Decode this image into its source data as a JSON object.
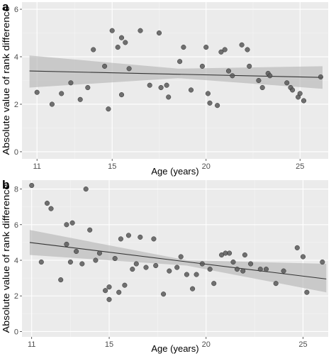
{
  "colors": {
    "panel_bg": "#ebebeb",
    "grid_major": "#ffffff",
    "grid_minor": "#f4f4f4",
    "point_fill": "#595959",
    "point_stroke": "#333333",
    "band_fill": "#b3b3b3",
    "fit_line": "#333333",
    "tick_text": "#4d4d4d"
  },
  "chart_data": [
    {
      "type": "scatter",
      "panel_label": "a",
      "xlabel": "Age (years)",
      "ylabel": "Absolute value of rank difference",
      "xlim": [
        10.2,
        26.5
      ],
      "ylim": [
        -0.3,
        6.3
      ],
      "xticks": [
        11,
        15,
        20,
        25
      ],
      "yticks": [
        0,
        2,
        4,
        6
      ],
      "grid": true,
      "legend": "none",
      "points": [
        [
          11.0,
          2.5
        ],
        [
          11.8,
          2.0
        ],
        [
          12.3,
          2.45
        ],
        [
          12.8,
          2.9
        ],
        [
          13.3,
          2.2
        ],
        [
          13.7,
          2.7
        ],
        [
          14.0,
          4.3
        ],
        [
          14.6,
          3.6
        ],
        [
          14.8,
          1.8
        ],
        [
          15.0,
          5.1
        ],
        [
          15.3,
          4.4
        ],
        [
          15.5,
          4.8
        ],
        [
          15.7,
          4.6
        ],
        [
          15.9,
          3.5
        ],
        [
          15.5,
          2.4
        ],
        [
          16.5,
          5.1
        ],
        [
          17.0,
          2.8
        ],
        [
          17.5,
          5.0
        ],
        [
          17.6,
          2.7
        ],
        [
          17.9,
          2.8
        ],
        [
          18.0,
          2.3
        ],
        [
          18.6,
          3.8
        ],
        [
          18.8,
          4.4
        ],
        [
          19.2,
          2.6
        ],
        [
          19.8,
          3.6
        ],
        [
          20.0,
          4.4
        ],
        [
          20.1,
          2.45
        ],
        [
          20.2,
          2.05
        ],
        [
          20.6,
          1.95
        ],
        [
          20.8,
          4.2
        ],
        [
          21.0,
          4.3
        ],
        [
          21.2,
          3.4
        ],
        [
          21.4,
          3.2
        ],
        [
          21.9,
          4.5
        ],
        [
          22.2,
          4.3
        ],
        [
          22.3,
          3.6
        ],
        [
          22.8,
          3.0
        ],
        [
          23.0,
          2.7
        ],
        [
          23.3,
          3.3
        ],
        [
          23.4,
          3.2
        ],
        [
          24.3,
          2.9
        ],
        [
          24.5,
          2.7
        ],
        [
          24.6,
          2.6
        ],
        [
          24.9,
          2.3
        ],
        [
          25.0,
          2.45
        ],
        [
          25.2,
          2.15
        ],
        [
          26.1,
          3.15
        ]
      ],
      "fit": {
        "x": [
          10.6,
          26.2
        ],
        "y": [
          3.4,
          3.13
        ]
      },
      "band": {
        "x": [
          10.6,
          18.5,
          26.2
        ],
        "lower": [
          2.7,
          3.1,
          2.65
        ],
        "upper": [
          4.05,
          3.5,
          3.6
        ]
      }
    },
    {
      "type": "scatter",
      "panel_label": "b",
      "xlabel": "Age (years)",
      "ylabel": "Absolute value of rank difference",
      "xlim": [
        10.5,
        26.3
      ],
      "ylim": [
        -0.3,
        8.5
      ],
      "xticks": [
        11,
        15,
        20,
        25
      ],
      "yticks": [
        0,
        2,
        4,
        6,
        8
      ],
      "grid": true,
      "legend": "none",
      "points": [
        [
          11.0,
          8.2
        ],
        [
          11.5,
          3.9
        ],
        [
          11.8,
          7.2
        ],
        [
          12.0,
          6.9
        ],
        [
          12.5,
          2.9
        ],
        [
          12.8,
          4.9
        ],
        [
          12.8,
          6.0
        ],
        [
          13.0,
          3.9
        ],
        [
          13.1,
          6.1
        ],
        [
          13.3,
          4.5
        ],
        [
          13.6,
          3.8
        ],
        [
          13.8,
          8.0
        ],
        [
          14.0,
          5.7
        ],
        [
          14.3,
          4.0
        ],
        [
          14.5,
          4.4
        ],
        [
          14.8,
          2.3
        ],
        [
          15.0,
          2.5
        ],
        [
          15.0,
          1.8
        ],
        [
          15.3,
          4.1
        ],
        [
          15.5,
          2.2
        ],
        [
          15.6,
          5.2
        ],
        [
          15.8,
          2.6
        ],
        [
          16.0,
          5.4
        ],
        [
          16.2,
          3.5
        ],
        [
          16.4,
          3.8
        ],
        [
          16.6,
          5.3
        ],
        [
          16.9,
          3.6
        ],
        [
          17.3,
          5.2
        ],
        [
          17.4,
          3.7
        ],
        [
          17.8,
          2.1
        ],
        [
          18.1,
          3.4
        ],
        [
          18.5,
          3.6
        ],
        [
          18.7,
          4.2
        ],
        [
          19.0,
          3.2
        ],
        [
          19.3,
          2.4
        ],
        [
          19.5,
          3.2
        ],
        [
          19.8,
          3.8
        ],
        [
          20.2,
          3.5
        ],
        [
          20.4,
          2.7
        ],
        [
          20.8,
          4.3
        ],
        [
          21.0,
          4.4
        ],
        [
          21.2,
          4.4
        ],
        [
          21.4,
          3.9
        ],
        [
          21.6,
          3.5
        ],
        [
          21.9,
          3.4
        ],
        [
          22.0,
          4.3
        ],
        [
          22.3,
          3.8
        ],
        [
          22.8,
          3.5
        ],
        [
          23.1,
          3.5
        ],
        [
          23.6,
          2.7
        ],
        [
          24.0,
          3.4
        ],
        [
          24.7,
          4.7
        ],
        [
          25.0,
          4.2
        ],
        [
          25.2,
          2.2
        ],
        [
          26.0,
          3.9
        ]
      ],
      "fit": {
        "x": [
          10.9,
          26.2
        ],
        "y": [
          5.0,
          2.95
        ]
      },
      "band": {
        "x": [
          10.9,
          19.0,
          26.2
        ],
        "lower": [
          4.3,
          3.7,
          2.2
        ],
        "upper": [
          5.7,
          4.0,
          3.8
        ]
      }
    }
  ]
}
